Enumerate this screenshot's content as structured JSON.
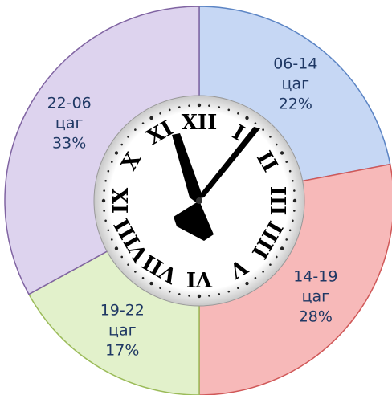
{
  "chart_data": {
    "type": "pie",
    "categories": [
      "06-14 цаг",
      "14-19 цаг",
      "19-22 цаг",
      "22-06 цаг"
    ],
    "values": [
      22,
      28,
      17,
      33
    ],
    "value_labels": [
      "22%",
      "28%",
      "17%",
      "33%"
    ],
    "colors": [
      "#c6d7f4",
      "#f7b9b9",
      "#e2f1cb",
      "#ddd3ee"
    ],
    "edge_colors": [
      "#5b84c4",
      "#d05858",
      "#9bbb59",
      "#8064a2"
    ]
  },
  "clock": {
    "numerals": [
      "XII",
      "I",
      "II",
      "III",
      "IIII",
      "V",
      "VI",
      "VII",
      "VIII",
      "IX",
      "X",
      "XI"
    ]
  }
}
